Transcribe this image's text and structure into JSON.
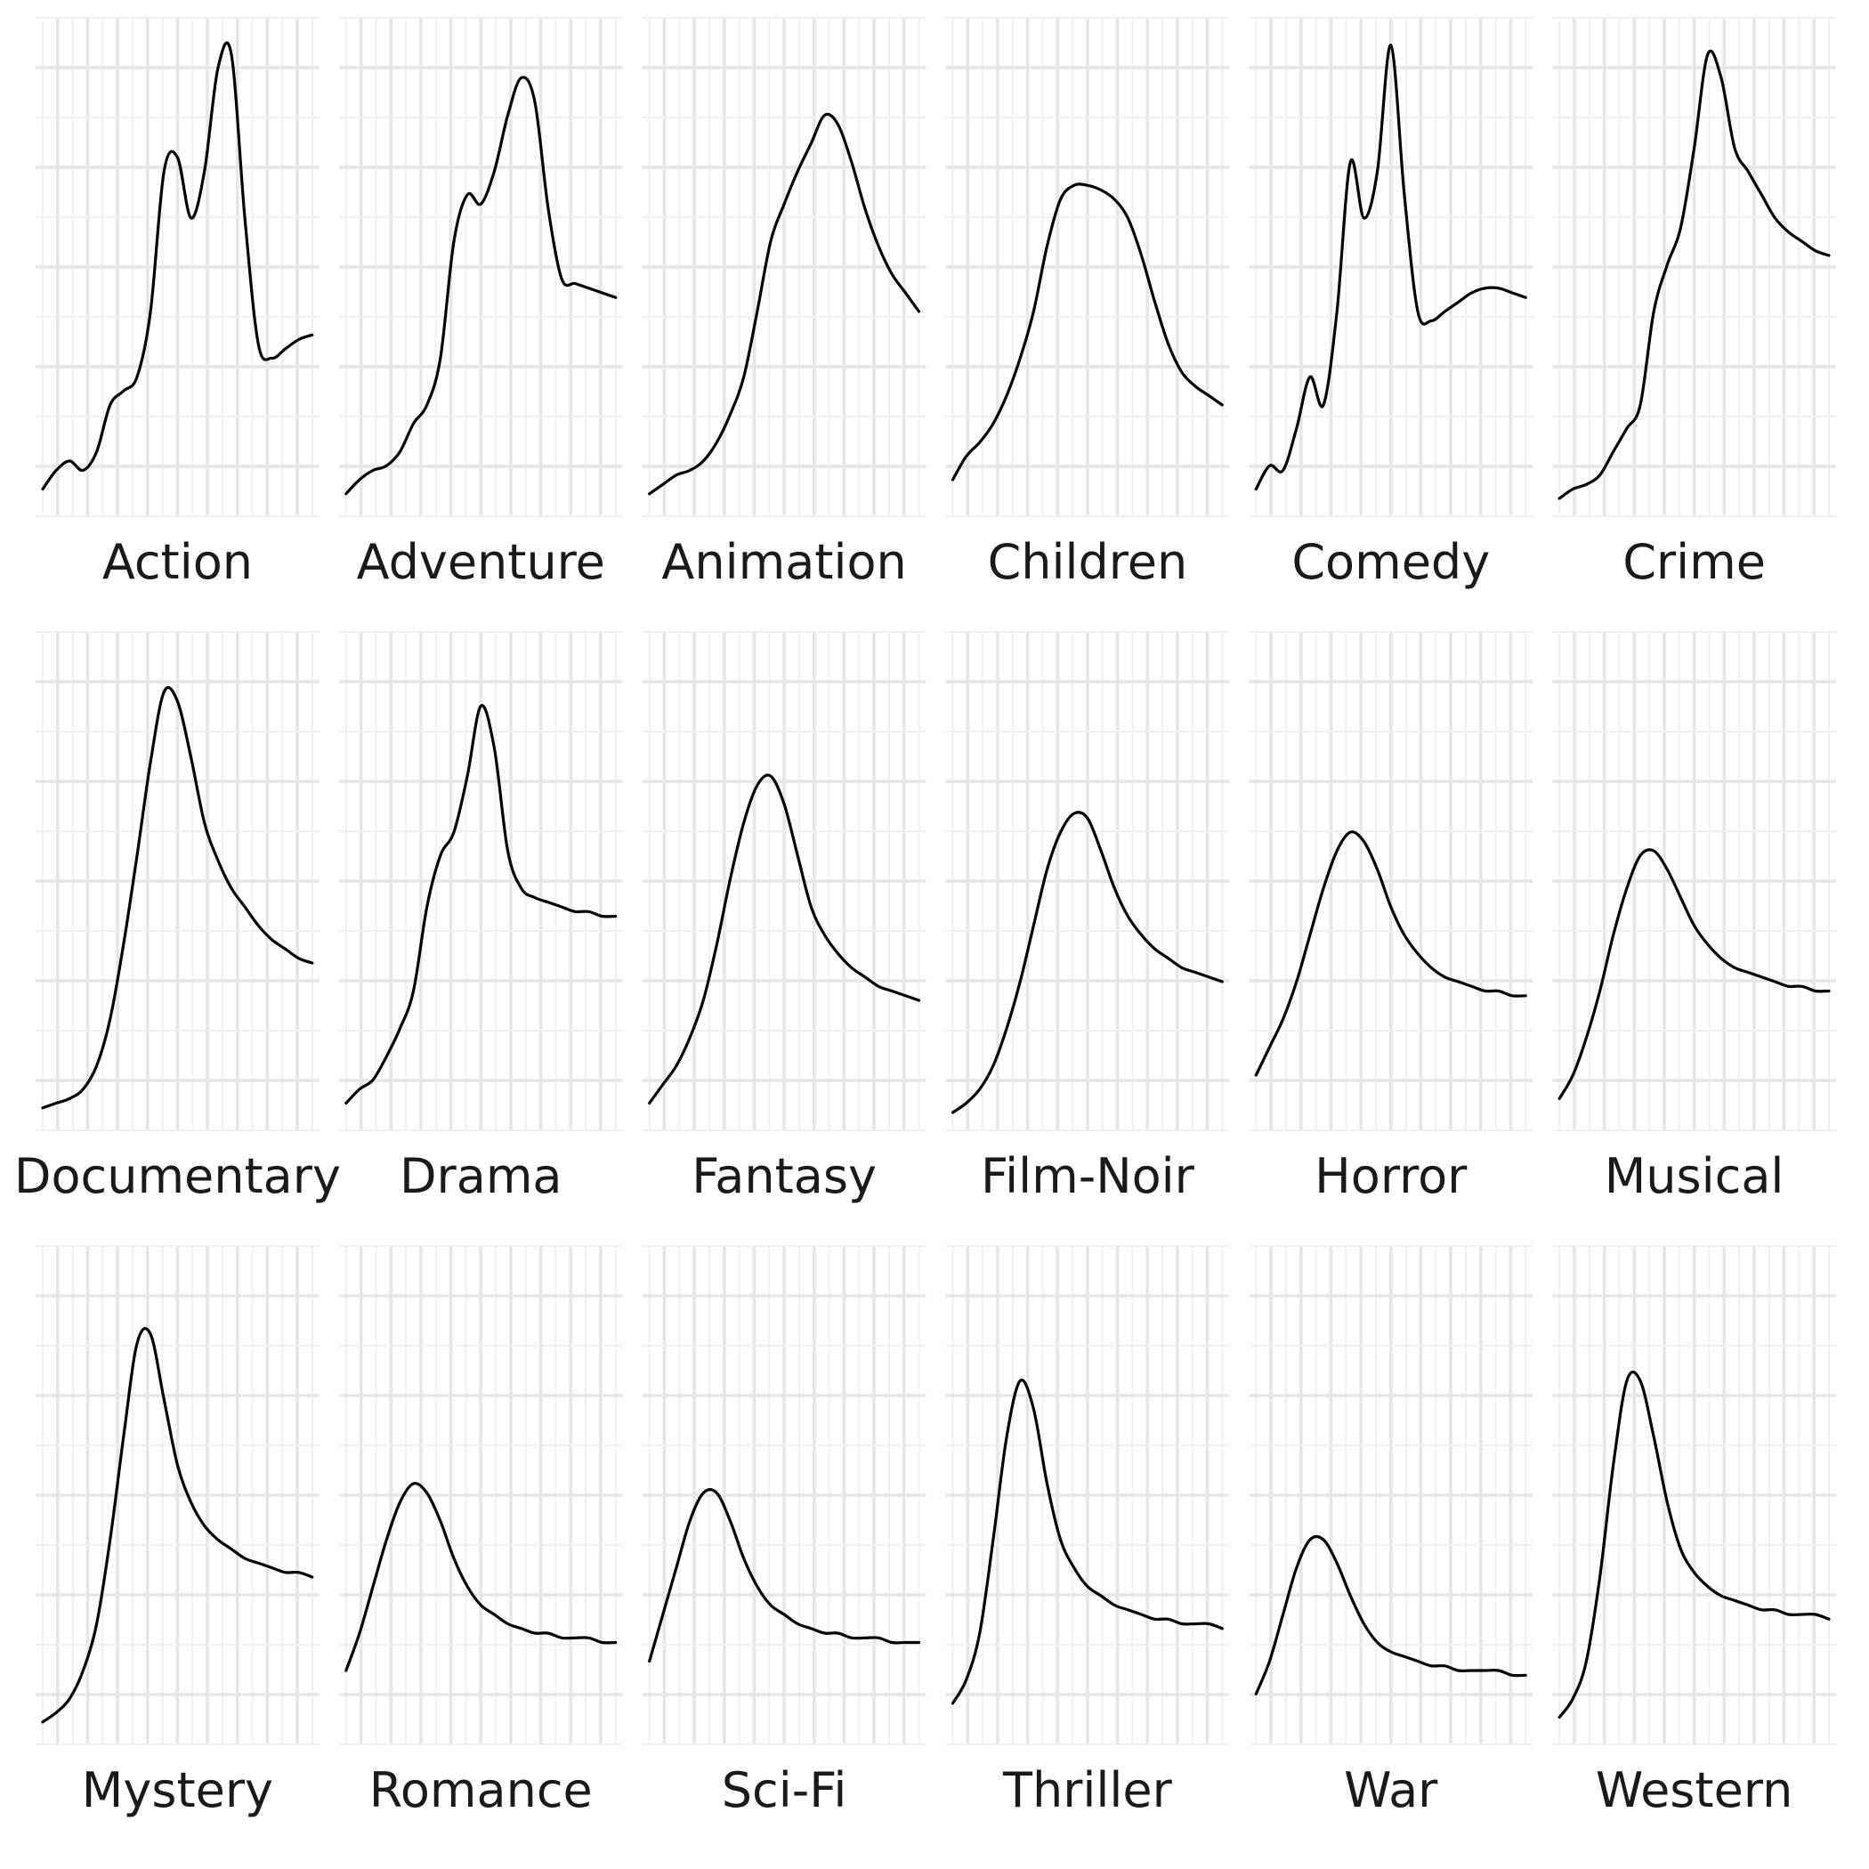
{
  "chart_data": {
    "type": "line",
    "subtype": "faceted-density",
    "title": "",
    "xlabel": "",
    "ylabel": "",
    "xlim": [
      0,
      1
    ],
    "ylim": [
      0,
      1
    ],
    "grid": true,
    "facet_layout": "3 rows x 6 columns",
    "series": [
      {
        "name": "Action",
        "x": [
          0,
          0.05,
          0.1,
          0.15,
          0.2,
          0.25,
          0.3,
          0.35,
          0.4,
          0.45,
          0.5,
          0.55,
          0.6,
          0.65,
          0.7,
          0.75,
          0.8,
          0.85,
          0.9,
          0.95,
          1
        ],
        "values": [
          0.02,
          0.06,
          0.08,
          0.06,
          0.1,
          0.2,
          0.23,
          0.26,
          0.4,
          0.7,
          0.73,
          0.6,
          0.7,
          0.92,
          0.95,
          0.6,
          0.33,
          0.3,
          0.32,
          0.34,
          0.35
        ]
      },
      {
        "name": "Adventure",
        "x": [
          0,
          0.05,
          0.1,
          0.15,
          0.2,
          0.25,
          0.3,
          0.35,
          0.4,
          0.45,
          0.5,
          0.55,
          0.6,
          0.65,
          0.7,
          0.75,
          0.8,
          0.85,
          0.9,
          0.95,
          1
        ],
        "values": [
          0.01,
          0.04,
          0.06,
          0.07,
          0.1,
          0.16,
          0.2,
          0.3,
          0.55,
          0.65,
          0.63,
          0.7,
          0.82,
          0.9,
          0.85,
          0.62,
          0.47,
          0.46,
          0.45,
          0.44,
          0.43
        ]
      },
      {
        "name": "Animation",
        "x": [
          0,
          0.05,
          0.1,
          0.15,
          0.2,
          0.25,
          0.3,
          0.35,
          0.4,
          0.45,
          0.5,
          0.55,
          0.6,
          0.65,
          0.7,
          0.75,
          0.8,
          0.85,
          0.9,
          0.95,
          1
        ],
        "values": [
          0.01,
          0.03,
          0.05,
          0.06,
          0.08,
          0.12,
          0.18,
          0.26,
          0.4,
          0.55,
          0.63,
          0.7,
          0.76,
          0.82,
          0.8,
          0.72,
          0.62,
          0.54,
          0.48,
          0.44,
          0.4
        ]
      },
      {
        "name": "Children",
        "x": [
          0,
          0.05,
          0.1,
          0.15,
          0.2,
          0.25,
          0.3,
          0.35,
          0.4,
          0.45,
          0.5,
          0.55,
          0.6,
          0.65,
          0.7,
          0.75,
          0.8,
          0.85,
          0.9,
          0.95,
          1
        ],
        "values": [
          0.04,
          0.09,
          0.12,
          0.16,
          0.22,
          0.3,
          0.4,
          0.54,
          0.64,
          0.67,
          0.67,
          0.66,
          0.64,
          0.6,
          0.52,
          0.42,
          0.33,
          0.27,
          0.24,
          0.22,
          0.2
        ]
      },
      {
        "name": "Comedy",
        "x": [
          0,
          0.05,
          0.1,
          0.15,
          0.2,
          0.25,
          0.3,
          0.35,
          0.4,
          0.45,
          0.5,
          0.55,
          0.6,
          0.65,
          0.7,
          0.75,
          0.8,
          0.85,
          0.9,
          0.95,
          1
        ],
        "values": [
          0.02,
          0.07,
          0.06,
          0.15,
          0.26,
          0.2,
          0.4,
          0.72,
          0.6,
          0.7,
          0.97,
          0.65,
          0.4,
          0.38,
          0.4,
          0.42,
          0.44,
          0.45,
          0.45,
          0.44,
          0.43
        ]
      },
      {
        "name": "Crime",
        "x": [
          0,
          0.05,
          0.1,
          0.15,
          0.2,
          0.25,
          0.3,
          0.35,
          0.4,
          0.45,
          0.5,
          0.55,
          0.6,
          0.65,
          0.7,
          0.75,
          0.8,
          0.85,
          0.9,
          0.95,
          1
        ],
        "values": [
          0.0,
          0.02,
          0.03,
          0.05,
          0.1,
          0.15,
          0.2,
          0.4,
          0.5,
          0.58,
          0.75,
          0.95,
          0.9,
          0.75,
          0.7,
          0.65,
          0.6,
          0.57,
          0.55,
          0.53,
          0.52
        ]
      },
      {
        "name": "Documentary",
        "x": [
          0,
          0.05,
          0.1,
          0.15,
          0.2,
          0.25,
          0.3,
          0.35,
          0.4,
          0.45,
          0.5,
          0.55,
          0.6,
          0.65,
          0.7,
          0.75,
          0.8,
          0.85,
          0.9,
          0.95,
          1
        ],
        "values": [
          0.01,
          0.02,
          0.03,
          0.05,
          0.1,
          0.2,
          0.36,
          0.55,
          0.75,
          0.9,
          0.88,
          0.76,
          0.62,
          0.54,
          0.48,
          0.44,
          0.4,
          0.37,
          0.35,
          0.33,
          0.32
        ]
      },
      {
        "name": "Drama",
        "x": [
          0,
          0.05,
          0.1,
          0.15,
          0.2,
          0.25,
          0.3,
          0.35,
          0.4,
          0.45,
          0.5,
          0.55,
          0.6,
          0.65,
          0.7,
          0.75,
          0.8,
          0.85,
          0.9,
          0.95,
          1
        ],
        "values": [
          0.02,
          0.05,
          0.07,
          0.12,
          0.18,
          0.26,
          0.44,
          0.55,
          0.6,
          0.72,
          0.87,
          0.78,
          0.56,
          0.48,
          0.46,
          0.45,
          0.44,
          0.43,
          0.43,
          0.42,
          0.42
        ]
      },
      {
        "name": "Fantasy",
        "x": [
          0,
          0.05,
          0.1,
          0.15,
          0.2,
          0.25,
          0.3,
          0.35,
          0.4,
          0.45,
          0.5,
          0.55,
          0.6,
          0.65,
          0.7,
          0.75,
          0.8,
          0.85,
          0.9,
          0.95,
          1
        ],
        "values": [
          0.02,
          0.06,
          0.1,
          0.16,
          0.24,
          0.36,
          0.5,
          0.62,
          0.7,
          0.72,
          0.66,
          0.55,
          0.44,
          0.38,
          0.34,
          0.31,
          0.29,
          0.27,
          0.26,
          0.25,
          0.24
        ]
      },
      {
        "name": "Film-Noir",
        "x": [
          0,
          0.05,
          0.1,
          0.15,
          0.2,
          0.25,
          0.3,
          0.35,
          0.4,
          0.45,
          0.5,
          0.55,
          0.6,
          0.65,
          0.7,
          0.75,
          0.8,
          0.85,
          0.9,
          0.95,
          1
        ],
        "values": [
          0.0,
          0.02,
          0.05,
          0.1,
          0.18,
          0.28,
          0.4,
          0.52,
          0.6,
          0.64,
          0.63,
          0.56,
          0.48,
          0.42,
          0.38,
          0.35,
          0.33,
          0.31,
          0.3,
          0.29,
          0.28
        ]
      },
      {
        "name": "Horror",
        "x": [
          0,
          0.05,
          0.1,
          0.15,
          0.2,
          0.25,
          0.3,
          0.35,
          0.4,
          0.45,
          0.5,
          0.55,
          0.6,
          0.65,
          0.7,
          0.75,
          0.8,
          0.85,
          0.9,
          0.95,
          1
        ],
        "values": [
          0.08,
          0.14,
          0.2,
          0.28,
          0.38,
          0.48,
          0.56,
          0.6,
          0.58,
          0.52,
          0.44,
          0.38,
          0.34,
          0.31,
          0.29,
          0.28,
          0.27,
          0.26,
          0.26,
          0.25,
          0.25
        ]
      },
      {
        "name": "Musical",
        "x": [
          0,
          0.05,
          0.1,
          0.15,
          0.2,
          0.25,
          0.3,
          0.35,
          0.4,
          0.45,
          0.5,
          0.55,
          0.6,
          0.65,
          0.7,
          0.75,
          0.8,
          0.85,
          0.9,
          0.95,
          1
        ],
        "values": [
          0.03,
          0.08,
          0.16,
          0.26,
          0.38,
          0.48,
          0.55,
          0.56,
          0.52,
          0.46,
          0.4,
          0.36,
          0.33,
          0.31,
          0.3,
          0.29,
          0.28,
          0.27,
          0.27,
          0.26,
          0.26
        ]
      },
      {
        "name": "Mystery",
        "x": [
          0,
          0.05,
          0.1,
          0.15,
          0.2,
          0.25,
          0.3,
          0.35,
          0.4,
          0.45,
          0.5,
          0.55,
          0.6,
          0.65,
          0.7,
          0.75,
          0.8,
          0.85,
          0.9,
          0.95,
          1
        ],
        "values": [
          0.01,
          0.03,
          0.06,
          0.12,
          0.22,
          0.4,
          0.62,
          0.82,
          0.84,
          0.7,
          0.56,
          0.48,
          0.43,
          0.4,
          0.38,
          0.36,
          0.35,
          0.34,
          0.33,
          0.33,
          0.32
        ]
      },
      {
        "name": "Romance",
        "x": [
          0,
          0.05,
          0.1,
          0.15,
          0.2,
          0.25,
          0.3,
          0.35,
          0.4,
          0.45,
          0.5,
          0.55,
          0.6,
          0.65,
          0.7,
          0.75,
          0.8,
          0.85,
          0.9,
          0.95,
          1
        ],
        "values": [
          0.12,
          0.2,
          0.3,
          0.4,
          0.48,
          0.52,
          0.5,
          0.44,
          0.36,
          0.3,
          0.26,
          0.24,
          0.22,
          0.21,
          0.2,
          0.2,
          0.19,
          0.19,
          0.19,
          0.18,
          0.18
        ]
      },
      {
        "name": "Sci-Fi",
        "x": [
          0,
          0.05,
          0.1,
          0.15,
          0.2,
          0.25,
          0.3,
          0.35,
          0.4,
          0.45,
          0.5,
          0.55,
          0.6,
          0.65,
          0.7,
          0.75,
          0.8,
          0.85,
          0.9,
          0.95,
          1
        ],
        "values": [
          0.14,
          0.24,
          0.34,
          0.44,
          0.5,
          0.5,
          0.44,
          0.36,
          0.3,
          0.26,
          0.24,
          0.22,
          0.21,
          0.2,
          0.2,
          0.19,
          0.19,
          0.19,
          0.18,
          0.18,
          0.18
        ]
      },
      {
        "name": "Thriller",
        "x": [
          0,
          0.05,
          0.1,
          0.15,
          0.2,
          0.25,
          0.3,
          0.35,
          0.4,
          0.45,
          0.5,
          0.55,
          0.6,
          0.65,
          0.7,
          0.75,
          0.8,
          0.85,
          0.9,
          0.95,
          1
        ],
        "values": [
          0.05,
          0.1,
          0.2,
          0.4,
          0.62,
          0.74,
          0.68,
          0.52,
          0.4,
          0.34,
          0.3,
          0.28,
          0.26,
          0.25,
          0.24,
          0.23,
          0.23,
          0.22,
          0.22,
          0.22,
          0.21
        ]
      },
      {
        "name": "War",
        "x": [
          0,
          0.05,
          0.1,
          0.15,
          0.2,
          0.25,
          0.3,
          0.35,
          0.4,
          0.45,
          0.5,
          0.55,
          0.6,
          0.65,
          0.7,
          0.75,
          0.8,
          0.85,
          0.9,
          0.95,
          1
        ],
        "values": [
          0.07,
          0.14,
          0.24,
          0.34,
          0.4,
          0.4,
          0.35,
          0.28,
          0.22,
          0.18,
          0.16,
          0.15,
          0.14,
          0.13,
          0.13,
          0.12,
          0.12,
          0.12,
          0.12,
          0.11,
          0.11
        ]
      },
      {
        "name": "Western",
        "x": [
          0,
          0.05,
          0.1,
          0.15,
          0.2,
          0.25,
          0.3,
          0.35,
          0.4,
          0.45,
          0.5,
          0.55,
          0.6,
          0.65,
          0.7,
          0.75,
          0.8,
          0.85,
          0.9,
          0.95,
          1
        ],
        "values": [
          0.02,
          0.06,
          0.14,
          0.32,
          0.56,
          0.74,
          0.74,
          0.62,
          0.48,
          0.38,
          0.33,
          0.3,
          0.28,
          0.27,
          0.26,
          0.25,
          0.25,
          0.24,
          0.24,
          0.24,
          0.23
        ]
      }
    ]
  },
  "labels": {
    "facets": [
      "Action",
      "Adventure",
      "Animation",
      "Children",
      "Comedy",
      "Crime",
      "Documentary",
      "Drama",
      "Fantasy",
      "Film-Noir",
      "Horror",
      "Musical",
      "Mystery",
      "Romance",
      "Sci-Fi",
      "Thriller",
      "War",
      "Western"
    ]
  },
  "colors": {
    "line": "#000000",
    "grid_major": "#e6e6e6",
    "grid_minor": "#f0f0f0",
    "text": "#1a1a1a",
    "background": "#ffffff"
  }
}
